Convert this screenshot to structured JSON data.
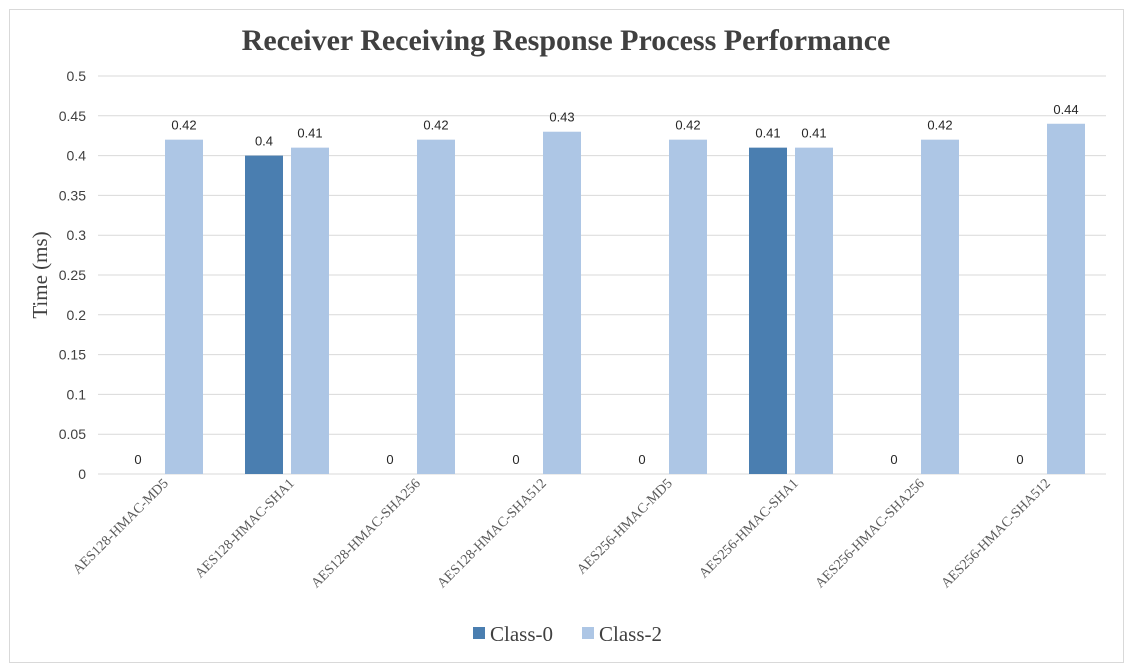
{
  "chart_data": {
    "type": "bar",
    "title": "Receiver Receiving Response Process Performance",
    "xlabel": "",
    "ylabel": "Time (ms)",
    "ylim": [
      0,
      0.5
    ],
    "yticks": [
      "0",
      "0.05",
      "0.1",
      "0.15",
      "0.2",
      "0.25",
      "0.3",
      "0.35",
      "0.4",
      "0.45",
      "0.5"
    ],
    "grid": true,
    "legend_position": "bottom",
    "categories": [
      "AES128-HMAC-MD5",
      "AES128-HMAC-SHA1",
      "AES128-HMAC-SHA256",
      "AES128-HMAC-SHA512",
      "AES256-HMAC-MD5",
      "AES256-HMAC-SHA1",
      "AES256-HMAC-SHA256",
      "AES256-HMAC-SHA512"
    ],
    "series": [
      {
        "name": "Class-0",
        "color": "#4a7eb0",
        "values": [
          0,
          0.4,
          0,
          0,
          0,
          0.41,
          0,
          0
        ],
        "labels": [
          "0",
          "0.4",
          "0",
          "0",
          "0",
          "0.41",
          "0",
          "0"
        ]
      },
      {
        "name": "Class-2",
        "color": "#adc6e5",
        "values": [
          0.42,
          0.41,
          0.42,
          0.43,
          0.42,
          0.41,
          0.42,
          0.44
        ],
        "labels": [
          "0.42",
          "0.41",
          "0.42",
          "0.43",
          "0.42",
          "0.41",
          "0.42",
          "0.44"
        ]
      }
    ]
  }
}
